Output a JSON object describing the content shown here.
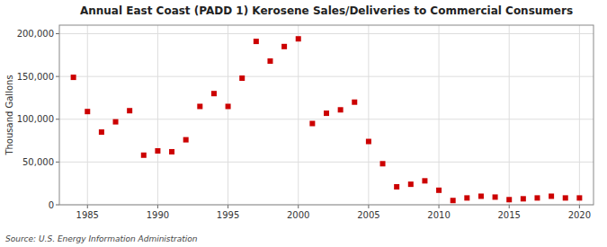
{
  "chart_data": {
    "type": "scatter",
    "title": "Annual East Coast (PADD 1) Kerosene Sales/Deliveries to Commercial Consumers",
    "ylabel": "Thousand Gallons",
    "source": "Source: U.S. Energy Information Administration",
    "color": "#cc0000",
    "marker": "square",
    "grid": true,
    "xlim": [
      1983,
      2021
    ],
    "ylim": [
      0,
      210000
    ],
    "xticks": [
      1985,
      1990,
      1995,
      2000,
      2005,
      2010,
      2015,
      2020
    ],
    "yticks": [
      0,
      {
        "value": 50000,
        "label": "50,000"
      },
      {
        "value": 100000,
        "label": "100,000"
      },
      {
        "value": 150000,
        "label": "150,000"
      },
      {
        "value": 200000,
        "label": "200,000"
      }
    ],
    "x": [
      1984,
      1985,
      1986,
      1987,
      1988,
      1989,
      1990,
      1991,
      1992,
      1993,
      1994,
      1995,
      1996,
      1997,
      1998,
      1999,
      2000,
      2001,
      2002,
      2003,
      2004,
      2005,
      2006,
      2007,
      2008,
      2009,
      2010,
      2011,
      2012,
      2013,
      2014,
      2015,
      2016,
      2017,
      2018,
      2019,
      2020
    ],
    "values": [
      149000,
      109000,
      85000,
      97000,
      110000,
      58000,
      63000,
      62000,
      76000,
      115000,
      130000,
      115000,
      148000,
      191000,
      168000,
      185000,
      194000,
      95000,
      107000,
      111000,
      120000,
      74000,
      48000,
      21000,
      24000,
      28000,
      17000,
      5000,
      8000,
      10000,
      9000,
      6000,
      7000,
      8000,
      10000,
      8000,
      8000
    ]
  }
}
